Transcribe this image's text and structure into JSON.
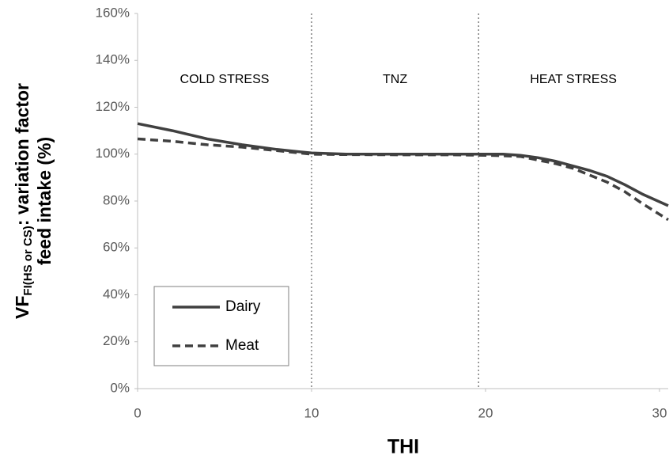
{
  "chart_data": {
    "type": "line",
    "x_label": "THI",
    "y_label": {
      "main": "VF",
      "subscript": "FI(HS or CS)",
      "rest": ": variation factor",
      "line2": "feed intake (%)"
    },
    "xlim": [
      0,
      30.5
    ],
    "xticks": [
      0,
      10,
      20,
      30
    ],
    "ylim": [
      0,
      160
    ],
    "yticks": [
      {
        "value": 0,
        "label": "0%"
      },
      {
        "value": 20,
        "label": "20%"
      },
      {
        "value": 40,
        "label": "40%"
      },
      {
        "value": 60,
        "label": "60%"
      },
      {
        "value": 80,
        "label": "80%"
      },
      {
        "value": 100,
        "label": "100%"
      },
      {
        "value": 120,
        "label": "120%"
      },
      {
        "value": 140,
        "label": "140%"
      },
      {
        "value": 160,
        "label": "160%"
      }
    ],
    "grid": false,
    "dividers": [
      10,
      19.6
    ],
    "regions": [
      "COLD STRESS",
      "TNZ",
      "HEAT STRESS"
    ],
    "legend": "lower left",
    "series": [
      {
        "name": "Dairy",
        "color": "#404040",
        "dash": false,
        "x": [
          0,
          2,
          4,
          6,
          8,
          10,
          12,
          15,
          18,
          20,
          21,
          22,
          23,
          24,
          25,
          26,
          27,
          28,
          29,
          30.5
        ],
        "values": [
          113,
          110,
          106.5,
          104,
          102,
          100.5,
          100,
          100,
          100,
          100,
          100,
          99.5,
          98.5,
          97,
          95,
          93,
          90.5,
          87,
          83,
          78
        ]
      },
      {
        "name": "Meat",
        "color": "#404040",
        "dash": true,
        "x": [
          0,
          2,
          4,
          6,
          8,
          10,
          12,
          15,
          18,
          20,
          21,
          22,
          23,
          24,
          25,
          26,
          27,
          28,
          29,
          30.5
        ],
        "values": [
          106.5,
          105.5,
          104,
          103,
          101.5,
          100,
          99.8,
          99.7,
          99.7,
          99.5,
          99.3,
          99,
          97.5,
          96,
          94,
          91,
          88,
          84,
          79,
          72
        ]
      }
    ]
  }
}
